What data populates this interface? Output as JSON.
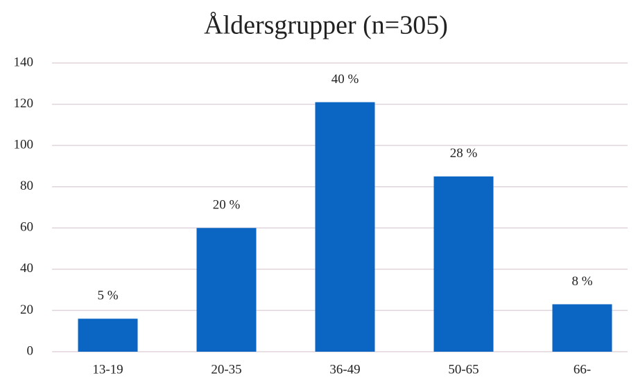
{
  "chart_data": {
    "type": "bar",
    "title": "Åldersgrupper (n=305)",
    "categories": [
      "13-19",
      "20-35",
      "36-49",
      "50-65",
      "66-"
    ],
    "values": [
      16,
      60,
      121,
      85,
      23
    ],
    "percent_labels": [
      {
        "value": 5,
        "label": "5 %"
      },
      {
        "value": 20,
        "label": "20 %"
      },
      {
        "value": 40,
        "label": "40 %"
      },
      {
        "value": 28,
        "label": "28 %"
      },
      {
        "value": 8,
        "label": "8 %"
      }
    ],
    "color": "#0a66c2",
    "ylim": [
      0,
      140
    ],
    "yticks": [
      0,
      20,
      40,
      60,
      80,
      100,
      120,
      140
    ],
    "grid": true
  }
}
